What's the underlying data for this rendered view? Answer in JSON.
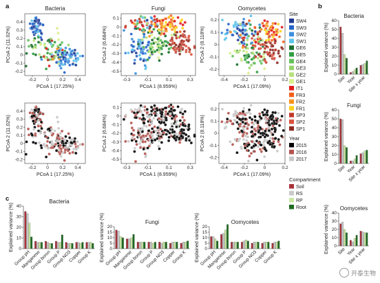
{
  "panel_labels": {
    "a": "a",
    "b": "b",
    "c": "c"
  },
  "watermark": "开泰生物",
  "chart_data": [
    {
      "type": "scatter",
      "panel": "a",
      "row": "site",
      "title": "Bacteria",
      "xlabel": "PCoA 1 (17.25%)",
      "ylabel": "PCoA 2 (11.02%)",
      "xlim": [
        -0.3,
        0.5
      ],
      "ylim": [
        -0.25,
        0.5
      ],
      "xticks": [
        -0.2,
        0,
        0.2,
        0.4
      ],
      "yticks": [
        -0.2,
        -0.1,
        0,
        0.1,
        0.2,
        0.3,
        0.4
      ]
    },
    {
      "type": "scatter",
      "panel": "a",
      "row": "site",
      "title": "Fungi",
      "xlabel": "PCoA 1 (8.959%)",
      "ylabel": "PCoA 2 (6.684%)",
      "xlim": [
        -0.35,
        0.35
      ],
      "ylim": [
        -0.55,
        0.15
      ],
      "xticks": [
        -0.3,
        -0.1,
        0.1,
        0.3
      ],
      "yticks": [
        -0.5,
        -0.4,
        -0.3,
        -0.2,
        -0.1,
        0,
        0.1
      ]
    },
    {
      "type": "scatter",
      "panel": "a",
      "row": "site",
      "title": "Oomycetes",
      "xlabel": "PCoA 1 (17.09%)",
      "ylabel": "PCoA 2 (8.118%)",
      "xlim": [
        -0.45,
        0.2
      ],
      "ylim": [
        -0.25,
        0.25
      ],
      "xticks": [
        -0.4,
        -0.2,
        0,
        0.2
      ],
      "yticks": [
        -0.2,
        -0.1,
        0,
        0.1,
        0.2
      ]
    },
    {
      "type": "scatter",
      "panel": "a",
      "row": "year",
      "title": "",
      "xlabel": "PCoA 1 (17.25%)",
      "ylabel": "PCoA 2 (11.02%)",
      "xlim": [
        -0.3,
        0.5
      ],
      "ylim": [
        -0.25,
        0.5
      ],
      "xticks": [
        -0.2,
        0,
        0.2,
        0.4
      ],
      "yticks": [
        -0.2,
        -0.1,
        0,
        0.1,
        0.2,
        0.3,
        0.4
      ]
    },
    {
      "type": "scatter",
      "panel": "a",
      "row": "year",
      "title": "",
      "xlabel": "PCoA 1 (8.959%)",
      "ylabel": "PCoA 2 (6.684%)",
      "xlim": [
        -0.35,
        0.35
      ],
      "ylim": [
        -0.55,
        0.15
      ],
      "xticks": [
        -0.3,
        -0.1,
        0.1,
        0.3
      ],
      "yticks": [
        -0.5,
        -0.4,
        -0.3,
        -0.2,
        -0.1,
        0,
        0.1
      ]
    },
    {
      "type": "scatter",
      "panel": "a",
      "row": "year",
      "title": "",
      "xlabel": "PCoA 1 (17.09%)",
      "ylabel": "PCoA 2 (8.118%)",
      "xlim": [
        -0.45,
        0.2
      ],
      "ylim": [
        -0.25,
        0.25
      ],
      "xticks": [
        -0.4,
        -0.2,
        0,
        0.2
      ],
      "yticks": [
        -0.2,
        -0.1,
        0,
        0.1,
        0.2
      ]
    },
    {
      "type": "bar",
      "panel": "b",
      "title": "Bacteria",
      "ylabel": "Explained variance (%)",
      "ylim": [
        0,
        60
      ],
      "yticks": [
        0,
        10,
        20,
        30,
        40,
        50,
        60
      ],
      "categories": [
        "Site",
        "Year",
        "Site x year"
      ],
      "series": [
        {
          "name": "Soil",
          "values": [
            53,
            2,
            10
          ]
        },
        {
          "name": "RS",
          "values": [
            46,
            3,
            11
          ]
        },
        {
          "name": "RP",
          "values": [
            22,
            5,
            12
          ]
        },
        {
          "name": "Root",
          "values": [
            18,
            7,
            15
          ]
        }
      ]
    },
    {
      "type": "bar",
      "panel": "b",
      "title": "Fungi",
      "ylabel": "Explained variance (%)",
      "ylim": [
        0,
        60
      ],
      "yticks": [
        0,
        10,
        20,
        30,
        40,
        50,
        60
      ],
      "categories": [
        "Site",
        "Year",
        "Site x year"
      ],
      "series": [
        {
          "name": "Soil",
          "values": [
            50,
            3,
            11
          ]
        },
        {
          "name": "RS",
          "values": [
            49,
            3,
            12
          ]
        },
        {
          "name": "RP",
          "values": [
            20,
            5,
            14
          ]
        },
        {
          "name": "Root",
          "values": [
            18,
            9,
            15
          ]
        }
      ]
    },
    {
      "type": "bar",
      "panel": "b",
      "title": "Oomycetes",
      "ylabel": "Explained variance (%)",
      "ylim": [
        0,
        40
      ],
      "yticks": [
        0,
        10,
        20,
        30,
        40
      ],
      "categories": [
        "Site",
        "Year",
        "Site x year"
      ],
      "series": [
        {
          "name": "Soil",
          "values": [
            27,
            7,
            18
          ]
        },
        {
          "name": "RS",
          "values": [
            29,
            5,
            17
          ]
        },
        {
          "name": "RP",
          "values": [
            20,
            9,
            16
          ]
        },
        {
          "name": "Root",
          "values": [
            16,
            13,
            16
          ]
        }
      ]
    },
    {
      "type": "bar",
      "panel": "c",
      "title": "Bacteria",
      "ylabel": "Explained variance (%)",
      "ylim": [
        0,
        40
      ],
      "yticks": [
        0,
        10,
        20,
        30,
        40
      ],
      "categories": [
        "Group pH",
        "Manganese",
        "Group boron",
        "Group P",
        "Group NO3",
        "Copper",
        "Group K"
      ],
      "series": [
        {
          "name": "Soil",
          "values": [
            35,
            7,
            7,
            7,
            6,
            6,
            6
          ]
        },
        {
          "name": "RS",
          "values": [
            33,
            6,
            6,
            6,
            5,
            6,
            6
          ]
        },
        {
          "name": "RP",
          "values": [
            24,
            6,
            5,
            6,
            5,
            5,
            6
          ]
        },
        {
          "name": "Root",
          "values": [
            11,
            6,
            5,
            13,
            5,
            6,
            5
          ]
        }
      ]
    },
    {
      "type": "bar",
      "panel": "c",
      "title": "Fungi",
      "ylabel": "Explained variance (%)",
      "ylim": [
        0,
        20
      ],
      "yticks": [
        0,
        5,
        10,
        15,
        20
      ],
      "categories": [
        "Group pH",
        "Manganese",
        "Group boron",
        "Group P",
        "Group NO3",
        "Copper",
        "Group K"
      ],
      "series": [
        {
          "name": "Soil",
          "values": [
            17,
            9,
            6,
            6,
            6,
            5,
            5
          ]
        },
        {
          "name": "RS",
          "values": [
            16,
            9,
            6,
            6,
            5,
            6,
            6
          ]
        },
        {
          "name": "RP",
          "values": [
            11,
            10,
            6,
            5,
            6,
            6,
            6
          ]
        },
        {
          "name": "Root",
          "values": [
            10,
            13,
            6,
            6,
            6,
            6,
            7
          ]
        }
      ]
    },
    {
      "type": "bar",
      "panel": "c",
      "title": "Oomycetes",
      "ylabel": "Explained variance (%)",
      "ylim": [
        0,
        20
      ],
      "yticks": [
        0,
        5,
        10,
        15,
        20
      ],
      "categories": [
        "Group pH",
        "Manganese",
        "Group boron",
        "Group P",
        "Group NO3",
        "Copper",
        "Group K"
      ],
      "series": [
        {
          "name": "Soil",
          "values": [
            11,
            13,
            6,
            6,
            5,
            5,
            5
          ]
        },
        {
          "name": "RS",
          "values": [
            11,
            14,
            6,
            7,
            6,
            6,
            6
          ]
        },
        {
          "name": "RP",
          "values": [
            9,
            17,
            6,
            8,
            6,
            6,
            6
          ]
        },
        {
          "name": "Root",
          "values": [
            7,
            22,
            6,
            7,
            6,
            6,
            7
          ]
        }
      ]
    }
  ],
  "legends": {
    "site": {
      "title": "Site",
      "entries": [
        {
          "label": "SW4",
          "color": "#1f3a93"
        },
        {
          "label": "SW3",
          "color": "#2563c9"
        },
        {
          "label": "SW2",
          "color": "#3b8fe0"
        },
        {
          "label": "SW1",
          "color": "#5ec4ea"
        },
        {
          "label": "GE6",
          "color": "#1a6e2e"
        },
        {
          "label": "GE5",
          "color": "#2f9e44"
        },
        {
          "label": "GE4",
          "color": "#62c25a"
        },
        {
          "label": "GE3",
          "color": "#95d36a"
        },
        {
          "label": "GE2",
          "color": "#b8e07c"
        },
        {
          "label": "GE1",
          "color": "#d9ef8b"
        },
        {
          "label": "IT1",
          "color": "#e31a1c"
        },
        {
          "label": "FR3",
          "color": "#f25f1c"
        },
        {
          "label": "FR2",
          "color": "#f7931e"
        },
        {
          "label": "FR1",
          "color": "#fdd21a"
        },
        {
          "label": "SP3",
          "color": "#c0392b"
        },
        {
          "label": "SP2",
          "color": "#d9533f"
        },
        {
          "label": "SP1",
          "color": "#8e2a22"
        }
      ]
    },
    "year": {
      "title": "Year",
      "entries": [
        {
          "label": "2015",
          "color": "#000000"
        },
        {
          "label": "2016",
          "color": "#b5544f"
        },
        {
          "label": "2017",
          "color": "#c8c8c8"
        }
      ]
    },
    "compartment": {
      "title": "Compartment",
      "entries": [
        {
          "label": "Soil",
          "color": "#a8323a"
        },
        {
          "label": "RS",
          "color": "#c9c9c9"
        },
        {
          "label": "RP",
          "color": "#c8e8a0"
        },
        {
          "label": "Root",
          "color": "#1e6b21"
        }
      ]
    }
  }
}
